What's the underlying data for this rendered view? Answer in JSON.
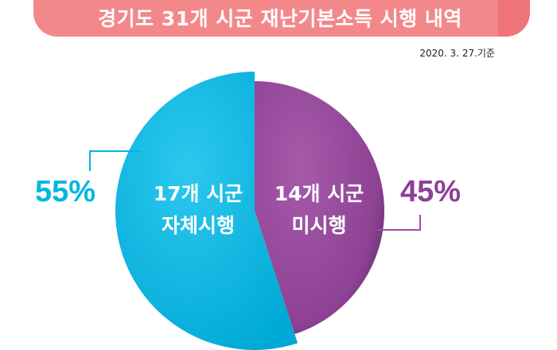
{
  "header": {
    "title": "경기도 31개 시군 재난기본소득 시행 내역",
    "date": "2020. 3. 27.기준"
  },
  "colors": {
    "title_band": "#f3888b",
    "self_implemented": "#00b7e0",
    "not_implemented": "#9b4f9f"
  },
  "chart_data": {
    "type": "pie",
    "title": "경기도 31개 시군 재난기본소득 시행 내역",
    "slices": [
      {
        "label_line1": "14개 시군",
        "label_line2": "미시행",
        "count": 14,
        "percent": 45,
        "percent_label": "45%",
        "color": "#9b4f9f"
      },
      {
        "label_line1": "17개 시군",
        "label_line2": "자체시행",
        "count": 17,
        "percent": 55,
        "percent_label": "55%",
        "color": "#00b7e0"
      }
    ]
  }
}
